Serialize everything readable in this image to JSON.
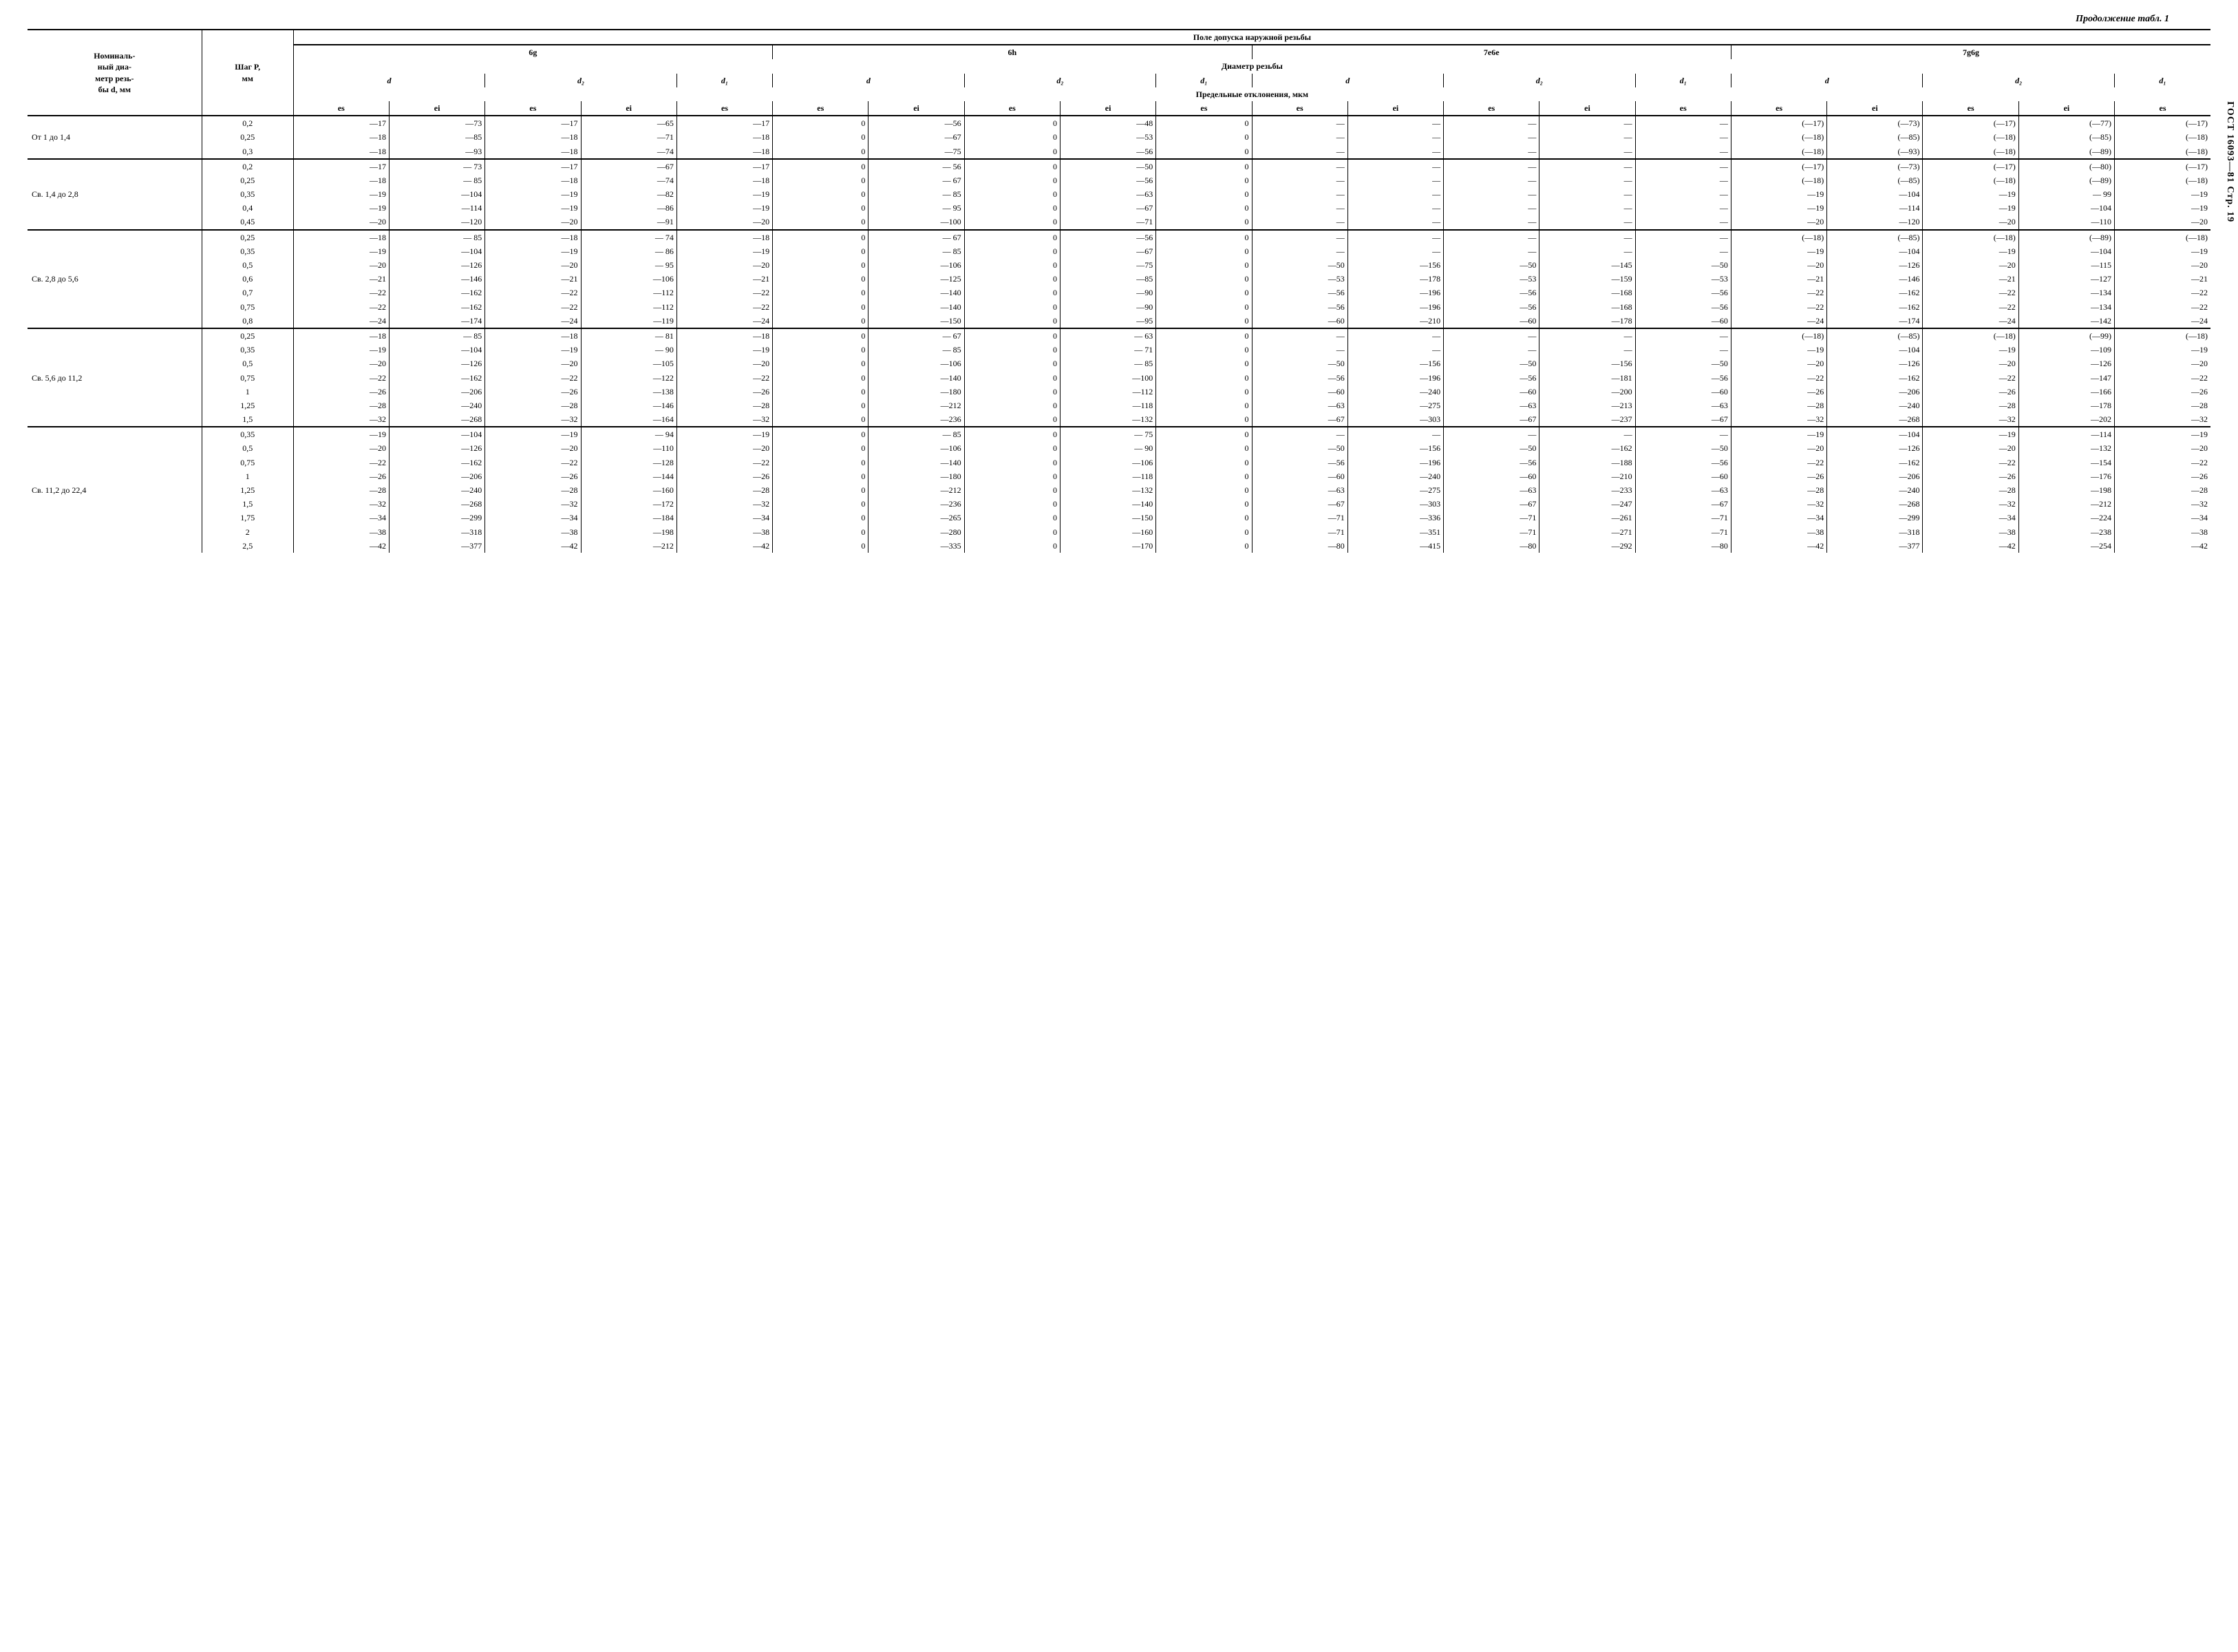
{
  "page_header": "Продолжение табл. 1",
  "side_label": "ГОСТ 16093—81 Стр. 19",
  "header": {
    "top_span": "Поле допуска наружной резьбы",
    "tol_fields": [
      "6g",
      "6h",
      "7e6e",
      "7g6g"
    ],
    "diam_row": "Диаметр резьбы",
    "nominal": "Номиналь-\nный диа-\nметр резь-\nбы d, мм",
    "pitch": "Шаг P,\nмм",
    "diam_syms": [
      "d",
      "d₂",
      "d₁"
    ],
    "dev_row": "Предельные отклонения, мкм",
    "es": "es",
    "ei": "ei"
  },
  "groups": [
    {
      "label": "От 1 до 1,4",
      "rows": [
        {
          "p": "0,2",
          "c": [
            "—17",
            "—73",
            "—17",
            "—65",
            "—17",
            "0",
            "—56",
            "0",
            "—48",
            "0",
            "—",
            "—",
            "—",
            "—",
            "—",
            "(—17)",
            "(—73)",
            "(—17)",
            "(—77)",
            "(—17)"
          ]
        },
        {
          "p": "0,25",
          "c": [
            "—18",
            "—85",
            "—18",
            "—71",
            "—18",
            "0",
            "—67",
            "0",
            "—53",
            "0",
            "—",
            "—",
            "—",
            "—",
            "—",
            "(—18)",
            "(—85)",
            "(—18)",
            "(—85)",
            "(—18)"
          ]
        },
        {
          "p": "0,3",
          "c": [
            "—18",
            "—93",
            "—18",
            "—74",
            "—18",
            "0",
            "—75",
            "0",
            "—56",
            "0",
            "—",
            "—",
            "—",
            "—",
            "—",
            "(—18)",
            "(—93)",
            "(—18)",
            "(—89)",
            "(—18)"
          ]
        }
      ]
    },
    {
      "label": "Св. 1,4 до 2,8",
      "rows": [
        {
          "p": "0,2",
          "c": [
            "—17",
            "— 73",
            "—17",
            "—67",
            "—17",
            "0",
            "— 56",
            "0",
            "—50",
            "0",
            "—",
            "—",
            "—",
            "—",
            "—",
            "(—17)",
            "(—73)",
            "(—17)",
            "(—80)",
            "(—17)"
          ]
        },
        {
          "p": "0,25",
          "c": [
            "—18",
            "— 85",
            "—18",
            "—74",
            "—18",
            "0",
            "— 67",
            "0",
            "—56",
            "0",
            "—",
            "—",
            "—",
            "—",
            "—",
            "(—18)",
            "(—85)",
            "(—18)",
            "(—89)",
            "(—18)"
          ]
        },
        {
          "p": "0,35",
          "c": [
            "—19",
            "—104",
            "—19",
            "—82",
            "—19",
            "0",
            "— 85",
            "0",
            "—63",
            "0",
            "—",
            "—",
            "—",
            "—",
            "—",
            "—19",
            "—104",
            "—19",
            "— 99",
            "—19"
          ]
        },
        {
          "p": "0,4",
          "c": [
            "—19",
            "—114",
            "—19",
            "—86",
            "—19",
            "0",
            "— 95",
            "0",
            "—67",
            "0",
            "—",
            "—",
            "—",
            "—",
            "—",
            "—19",
            "—114",
            "—19",
            "—104",
            "—19"
          ]
        },
        {
          "p": "0,45",
          "c": [
            "—20",
            "—120",
            "—20",
            "—91",
            "—20",
            "0",
            "—100",
            "0",
            "—71",
            "0",
            "—",
            "—",
            "—",
            "—",
            "—",
            "—20",
            "—120",
            "—20",
            "—110",
            "—20"
          ]
        }
      ]
    },
    {
      "label": "Св. 2,8 до 5,6",
      "rows": [
        {
          "p": "0,25",
          "c": [
            "—18",
            "— 85",
            "—18",
            "— 74",
            "—18",
            "0",
            "— 67",
            "0",
            "—56",
            "0",
            "—",
            "—",
            "—",
            "—",
            "—",
            "(—18)",
            "(—85)",
            "(—18)",
            "(—89)",
            "(—18)"
          ]
        },
        {
          "p": "0,35",
          "c": [
            "—19",
            "—104",
            "—19",
            "— 86",
            "—19",
            "0",
            "— 85",
            "0",
            "—67",
            "0",
            "—",
            "—",
            "—",
            "—",
            "—",
            "—19",
            "—104",
            "—19",
            "—104",
            "—19"
          ]
        },
        {
          "p": "0,5",
          "c": [
            "—20",
            "—126",
            "—20",
            "— 95",
            "—20",
            "0",
            "—106",
            "0",
            "—75",
            "0",
            "—50",
            "—156",
            "—50",
            "—145",
            "—50",
            "—20",
            "—126",
            "—20",
            "—115",
            "—20"
          ]
        },
        {
          "p": "0,6",
          "c": [
            "—21",
            "—146",
            "—21",
            "—106",
            "—21",
            "0",
            "—125",
            "0",
            "—85",
            "0",
            "—53",
            "—178",
            "—53",
            "—159",
            "—53",
            "—21",
            "—146",
            "—21",
            "—127",
            "—21"
          ]
        },
        {
          "p": "0,7",
          "c": [
            "—22",
            "—162",
            "—22",
            "—112",
            "—22",
            "0",
            "—140",
            "0",
            "—90",
            "0",
            "—56",
            "—196",
            "—56",
            "—168",
            "—56",
            "—22",
            "—162",
            "—22",
            "—134",
            "—22"
          ]
        },
        {
          "p": "0,75",
          "c": [
            "—22",
            "—162",
            "—22",
            "—112",
            "—22",
            "0",
            "—140",
            "0",
            "—90",
            "0",
            "—56",
            "—196",
            "—56",
            "—168",
            "—56",
            "—22",
            "—162",
            "—22",
            "—134",
            "—22"
          ]
        },
        {
          "p": "0,8",
          "c": [
            "—24",
            "—174",
            "—24",
            "—119",
            "—24",
            "0",
            "—150",
            "0",
            "—95",
            "0",
            "—60",
            "—210",
            "—60",
            "—178",
            "—60",
            "—24",
            "—174",
            "—24",
            "—142",
            "—24"
          ]
        }
      ]
    },
    {
      "label": "Св. 5,6 до 11,2",
      "rows": [
        {
          "p": "0,25",
          "c": [
            "—18",
            "— 85",
            "—18",
            "— 81",
            "—18",
            "0",
            "— 67",
            "0",
            "— 63",
            "0",
            "—",
            "—",
            "—",
            "—",
            "—",
            "(—18)",
            "(—85)",
            "(—18)",
            "(—99)",
            "(—18)"
          ]
        },
        {
          "p": "0,35",
          "c": [
            "—19",
            "—104",
            "—19",
            "— 90",
            "—19",
            "0",
            "— 85",
            "0",
            "— 71",
            "0",
            "—",
            "—",
            "—",
            "—",
            "—",
            "—19",
            "—104",
            "—19",
            "—109",
            "—19"
          ]
        },
        {
          "p": "0,5",
          "c": [
            "—20",
            "—126",
            "—20",
            "—105",
            "—20",
            "0",
            "—106",
            "0",
            "— 85",
            "0",
            "—50",
            "—156",
            "—50",
            "—156",
            "—50",
            "—20",
            "—126",
            "—20",
            "—126",
            "—20"
          ]
        },
        {
          "p": "0,75",
          "c": [
            "—22",
            "—162",
            "—22",
            "—122",
            "—22",
            "0",
            "—140",
            "0",
            "—100",
            "0",
            "—56",
            "—196",
            "—56",
            "—181",
            "—56",
            "—22",
            "—162",
            "—22",
            "—147",
            "—22"
          ]
        },
        {
          "p": "1",
          "c": [
            "—26",
            "—206",
            "—26",
            "—138",
            "—26",
            "0",
            "—180",
            "0",
            "—112",
            "0",
            "—60",
            "—240",
            "—60",
            "—200",
            "—60",
            "—26",
            "—206",
            "—26",
            "—166",
            "—26"
          ]
        },
        {
          "p": "1,25",
          "c": [
            "—28",
            "—240",
            "—28",
            "—146",
            "—28",
            "0",
            "—212",
            "0",
            "—118",
            "0",
            "—63",
            "—275",
            "—63",
            "—213",
            "—63",
            "—28",
            "—240",
            "—28",
            "—178",
            "—28"
          ]
        },
        {
          "p": "1,5",
          "c": [
            "—32",
            "—268",
            "—32",
            "—164",
            "—32",
            "0",
            "—236",
            "0",
            "—132",
            "0",
            "—67",
            "—303",
            "—67",
            "—237",
            "—67",
            "—32",
            "—268",
            "—32",
            "—202",
            "—32"
          ]
        }
      ]
    },
    {
      "label": "Св. 11,2 до 22,4",
      "rows": [
        {
          "p": "0,35",
          "c": [
            "—19",
            "—104",
            "—19",
            "— 94",
            "—19",
            "0",
            "— 85",
            "0",
            "— 75",
            "0",
            "—",
            "—",
            "—",
            "—",
            "—",
            "—19",
            "—104",
            "—19",
            "—114",
            "—19"
          ]
        },
        {
          "p": "0,5",
          "c": [
            "—20",
            "—126",
            "—20",
            "—110",
            "—20",
            "0",
            "—106",
            "0",
            "— 90",
            "0",
            "—50",
            "—156",
            "—50",
            "—162",
            "—50",
            "—20",
            "—126",
            "—20",
            "—132",
            "—20"
          ]
        },
        {
          "p": "0,75",
          "c": [
            "—22",
            "—162",
            "—22",
            "—128",
            "—22",
            "0",
            "—140",
            "0",
            "—106",
            "0",
            "—56",
            "—196",
            "—56",
            "—188",
            "—56",
            "—22",
            "—162",
            "—22",
            "—154",
            "—22"
          ]
        },
        {
          "p": "1",
          "c": [
            "—26",
            "—206",
            "—26",
            "—144",
            "—26",
            "0",
            "—180",
            "0",
            "—118",
            "0",
            "—60",
            "—240",
            "—60",
            "—210",
            "—60",
            "—26",
            "—206",
            "—26",
            "—176",
            "—26"
          ]
        },
        {
          "p": "1,25",
          "c": [
            "—28",
            "—240",
            "—28",
            "—160",
            "—28",
            "0",
            "—212",
            "0",
            "—132",
            "0",
            "—63",
            "—275",
            "—63",
            "—233",
            "—63",
            "—28",
            "—240",
            "—28",
            "—198",
            "—28"
          ]
        },
        {
          "p": "1,5",
          "c": [
            "—32",
            "—268",
            "—32",
            "—172",
            "—32",
            "0",
            "—236",
            "0",
            "—140",
            "0",
            "—67",
            "—303",
            "—67",
            "—247",
            "—67",
            "—32",
            "—268",
            "—32",
            "—212",
            "—32"
          ]
        },
        {
          "p": "1,75",
          "c": [
            "—34",
            "—299",
            "—34",
            "—184",
            "—34",
            "0",
            "—265",
            "0",
            "—150",
            "0",
            "—71",
            "—336",
            "—71",
            "—261",
            "—71",
            "—34",
            "—299",
            "—34",
            "—224",
            "—34"
          ]
        },
        {
          "p": "2",
          "c": [
            "—38",
            "—318",
            "—38",
            "—198",
            "—38",
            "0",
            "—280",
            "0",
            "—160",
            "0",
            "—71",
            "—351",
            "—71",
            "—271",
            "—71",
            "—38",
            "—318",
            "—38",
            "—238",
            "—38"
          ]
        },
        {
          "p": "2,5",
          "c": [
            "—42",
            "—377",
            "—42",
            "—212",
            "—42",
            "0",
            "—335",
            "0",
            "—170",
            "0",
            "—80",
            "—415",
            "—80",
            "—292",
            "—80",
            "—42",
            "—377",
            "—42",
            "—254",
            "—42"
          ]
        }
      ]
    }
  ]
}
